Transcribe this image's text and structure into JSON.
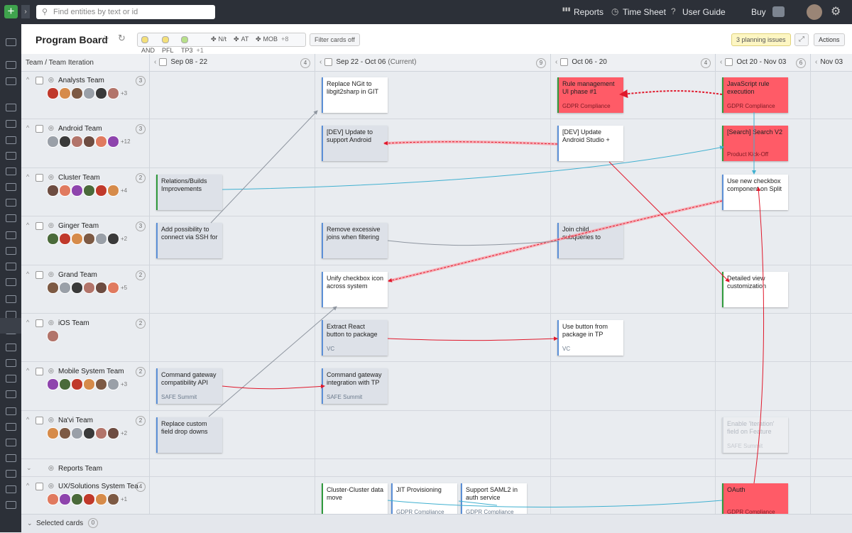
{
  "topbar": {
    "search_placeholder": "Find entities by text or id",
    "links": [
      "Reports",
      "Time Sheet",
      "User Guide"
    ],
    "buy": "Buy"
  },
  "header": {
    "title": "Program Board",
    "filters": [
      {
        "label": "AND",
        "color": "#f4e07a"
      },
      {
        "label": "PFL",
        "color": "#f4e07a"
      },
      {
        "label": "TP3",
        "extra": "+1",
        "color": "#b7e08a"
      },
      {
        "label": "N/t"
      },
      {
        "label": "AT"
      },
      {
        "label": "MOB",
        "extra": "+8"
      }
    ],
    "filter_button": "Filter cards off",
    "issues": "3 planning issues",
    "actions": "Actions"
  },
  "board": {
    "team_header": "Team / Team Iteration",
    "columns": [
      {
        "label": "Sep 08 - 22",
        "count": 4
      },
      {
        "label": "Sep 22 - Oct 06",
        "note": "(Current)",
        "count": 9
      },
      {
        "label": "Oct 06 - 20",
        "count": 4
      },
      {
        "label": "Oct 20 - Nov 03",
        "count": 6
      },
      {
        "label": "Nov 03"
      }
    ],
    "rows": [
      {
        "name": "Analysts Team",
        "count": 3,
        "extra": "+3",
        "cells": [
          [],
          [
            {
              "title": "Replace NGit to libgit2sharp in GIT",
              "color": "#ffffff",
              "border": "#5b8fd6"
            }
          ],
          [
            {
              "title": "Rule management UI phase #1",
              "subtitle": "GDPR Compliance",
              "color": "#ff5b67",
              "border": "#2f9a3c"
            }
          ],
          [
            {
              "title": "JavaScript rule execution",
              "subtitle": "GDPR Compliance",
              "color": "#ff5b67",
              "border": "#2f9a3c"
            }
          ],
          []
        ]
      },
      {
        "name": "Android Team",
        "count": 3,
        "extra": "+12",
        "cells": [
          [],
          [
            {
              "title": "[DEV] Update to support Android",
              "color": "#dde1e8",
              "border": "#5b8fd6"
            }
          ],
          [
            {
              "title": "[DEV] Update Android Studio +",
              "color": "#ffffff",
              "border": "#5b8fd6"
            }
          ],
          [
            {
              "title": "[Search] Search V2",
              "subtitle": "Product Kick-Off",
              "color": "#ff5b67",
              "border": "#2f9a3c"
            }
          ],
          []
        ]
      },
      {
        "name": "Cluster Team",
        "count": 2,
        "extra": "+4",
        "cells": [
          [
            {
              "title": "Relations/Builds Improvements",
              "color": "#dde1e8",
              "border": "#2f9a3c"
            }
          ],
          [],
          [],
          [
            {
              "title": "Use new checkbox component on Split",
              "color": "#ffffff",
              "border": "#5b8fd6"
            }
          ],
          []
        ]
      },
      {
        "name": "Ginger Team",
        "count": 3,
        "extra": "+2",
        "cells": [
          [
            {
              "title": "Add possibility to connect via SSH for",
              "color": "#dde1e8",
              "border": "#5b8fd6"
            }
          ],
          [
            {
              "title": "Remove excessive joins when filtering",
              "color": "#dde1e8",
              "border": "#5b8fd6"
            }
          ],
          [
            {
              "title": "Join child subqueries to",
              "color": "#dde1e8",
              "border": "#5b8fd6"
            }
          ],
          [],
          []
        ]
      },
      {
        "name": "Grand Team",
        "count": 2,
        "extra": "+5",
        "cells": [
          [],
          [
            {
              "title": "Unify checkbox icon across system",
              "color": "#ffffff",
              "border": "#5b8fd6"
            }
          ],
          [],
          [
            {
              "title": "Detailed view customization",
              "color": "#ffffff",
              "border": "#2f9a3c"
            }
          ],
          []
        ]
      },
      {
        "name": "iOS Team",
        "count": 2,
        "cells": [
          [],
          [
            {
              "title": "Extract React button to package",
              "subtitle": "VC",
              "color": "#dde1e8",
              "border": "#5b8fd6"
            }
          ],
          [
            {
              "title": "Use button from package in TP",
              "subtitle": "VC",
              "color": "#ffffff",
              "border": "#5b8fd6"
            }
          ],
          [],
          []
        ]
      },
      {
        "name": "Mobile System Team",
        "count": 2,
        "extra": "+3",
        "cells": [
          [
            {
              "title": "Command gateway compatibility API",
              "subtitle": "SAFE Summit",
              "color": "#dde1e8",
              "border": "#5b8fd6"
            }
          ],
          [
            {
              "title": "Command gateway integration with TP",
              "subtitle": "SAFE Summit",
              "color": "#dde1e8",
              "border": "#5b8fd6"
            }
          ],
          [],
          [],
          []
        ]
      },
      {
        "name": "Na'vi Team",
        "count": 2,
        "extra": "+2",
        "cells": [
          [
            {
              "title": "Replace custom field drop downs",
              "color": "#dde1e8",
              "border": "#5b8fd6"
            }
          ],
          [],
          [],
          [
            {
              "title": "Enable 'Iteration' field on Feature",
              "subtitle": "SAFE Summit",
              "color": "#eceef1",
              "border": "#d5d9df",
              "faded": true
            }
          ],
          []
        ]
      },
      {
        "name": "Reports Team",
        "collapsed": true,
        "cells": [
          [],
          [],
          [],
          [],
          []
        ]
      },
      {
        "name": "UX/Solutions System Tea",
        "count": 4,
        "extra": "+1",
        "cells": [
          [],
          [
            {
              "title": "Cluster-Cluster data move",
              "color": "#ffffff",
              "border": "#2f9a3c"
            },
            {
              "title": "JIT Provisioning",
              "subtitle": "GDPR Compliance",
              "color": "#ffffff",
              "border": "#5b8fd6"
            },
            {
              "title": "Support SAML2 in auth service",
              "subtitle": "GDPR Compliance",
              "color": "#ffffff",
              "border": "#5b8fd6"
            }
          ],
          [],
          [
            {
              "title": "OAuth",
              "subtitle": "GDPR Compliance",
              "color": "#ff5b67",
              "border": "#2f9a3c"
            }
          ],
          []
        ]
      }
    ]
  },
  "footer": {
    "label": "Selected cards",
    "count": 0
  }
}
